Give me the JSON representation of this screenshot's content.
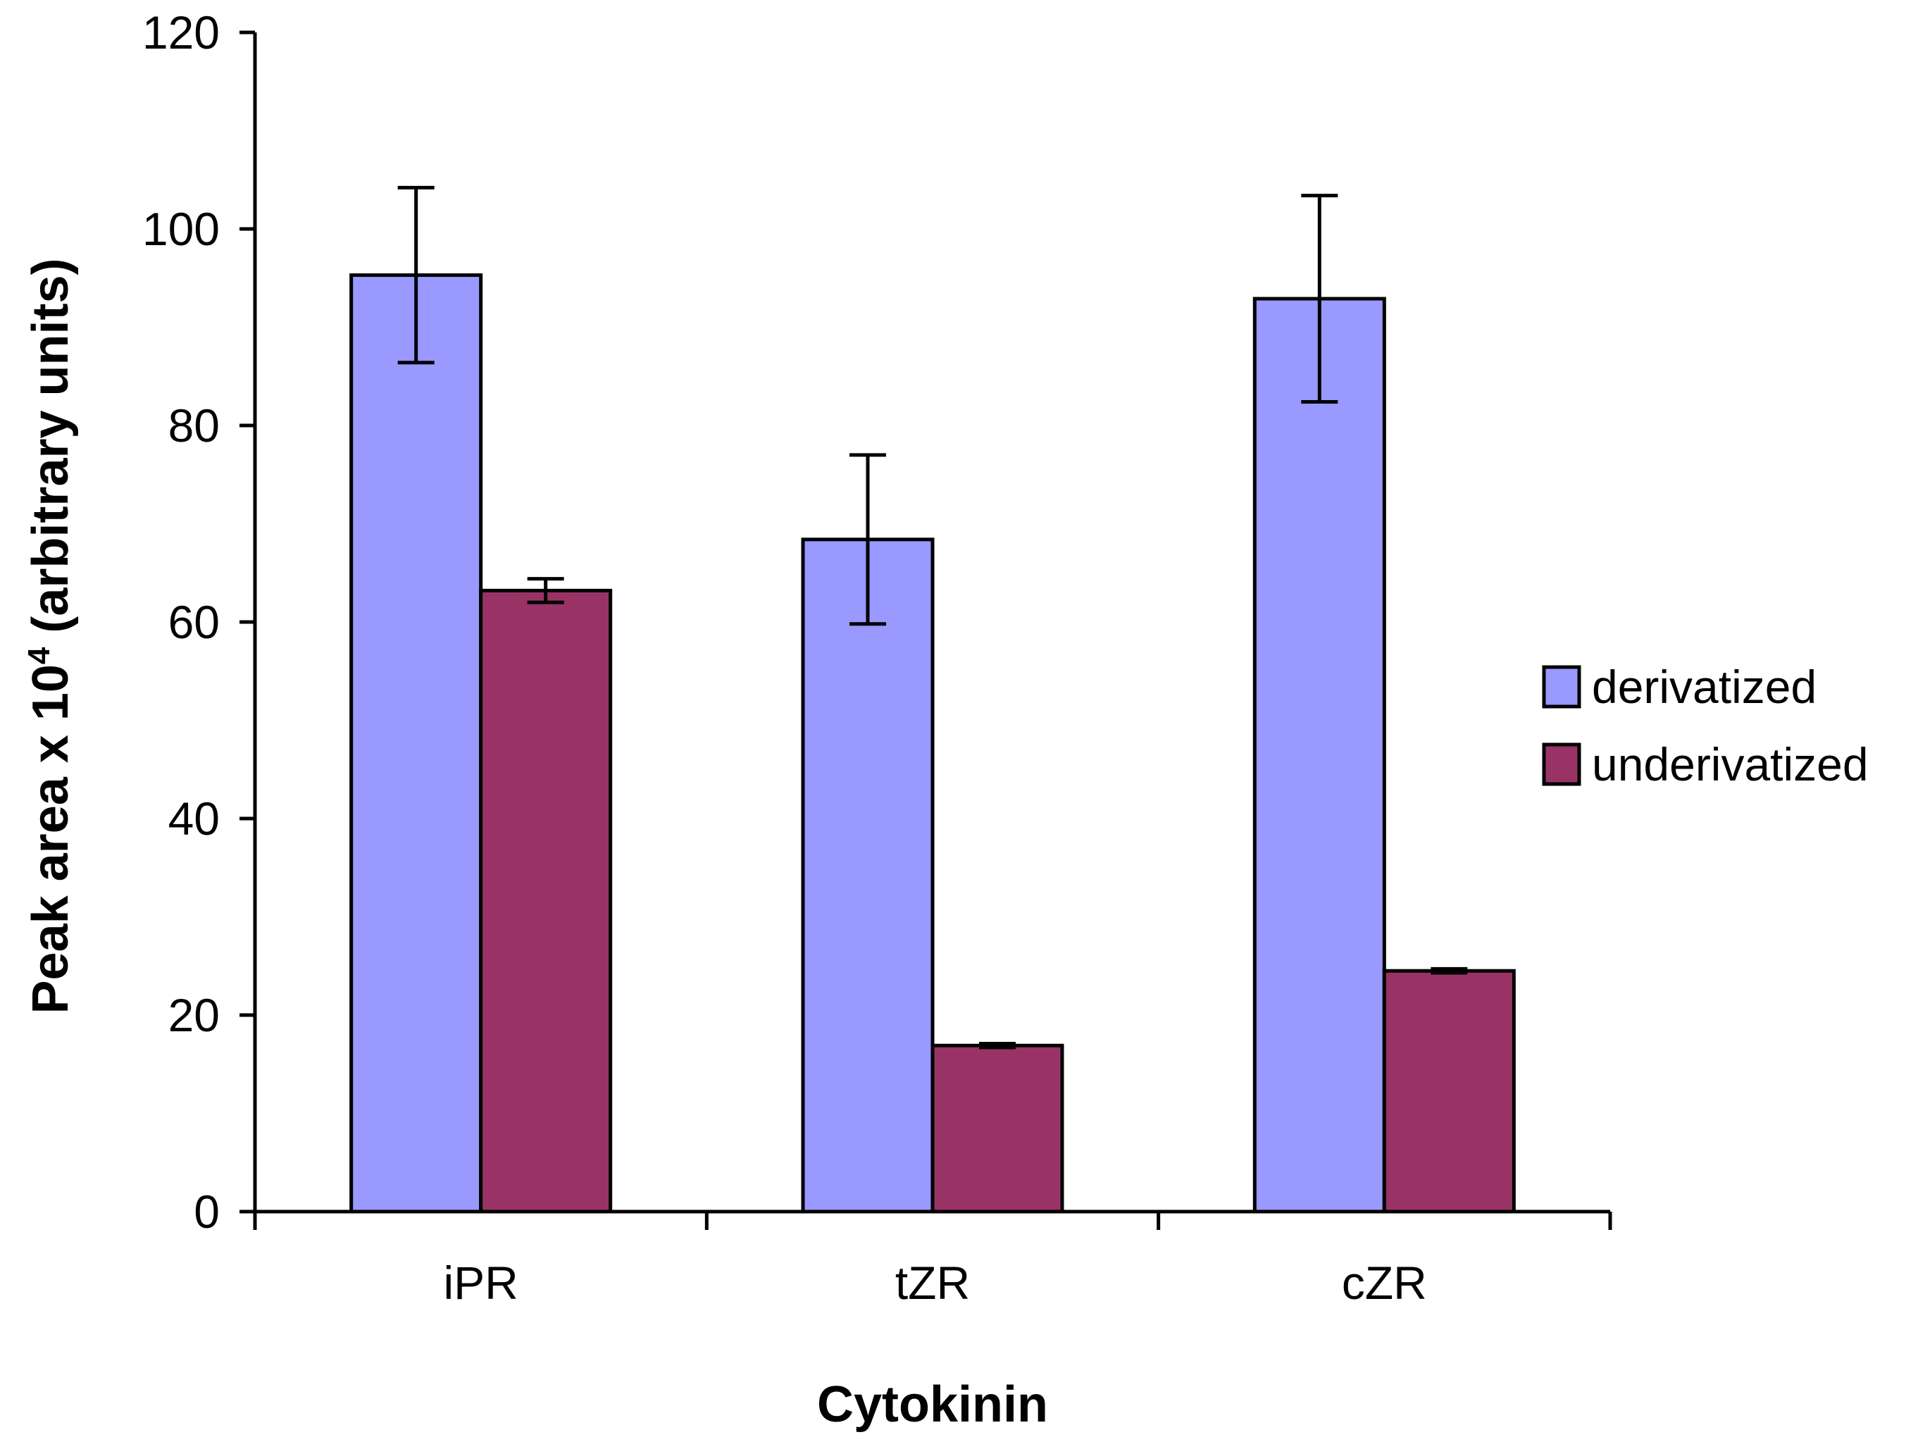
{
  "chart_data": {
    "type": "bar",
    "title": "",
    "xlabel": "Cytokinin",
    "ylabel_main": "Peak area x 10",
    "ylabel_sup": "4",
    "ylabel_tail": " (arbitrary units)",
    "ylim": [
      0,
      120
    ],
    "yticks": [
      0,
      20,
      40,
      60,
      80,
      100,
      120
    ],
    "ytick_labels": [
      "0",
      "20",
      "40",
      "60",
      "80",
      "100",
      "120"
    ],
    "categories": [
      "iPR",
      "tZR",
      "cZR"
    ],
    "grid": false,
    "legend_position": "right",
    "series": [
      {
        "name": "derivatized",
        "color": "#9999ff",
        "values": [
          95.3,
          68.4,
          92.9
        ],
        "err_low": [
          86.4,
          59.8,
          82.4
        ],
        "err_high": [
          104.2,
          77.0,
          103.4
        ]
      },
      {
        "name": "underivatized",
        "color": "#993366",
        "values": [
          63.2,
          16.9,
          24.5
        ],
        "err_low": [
          62.0,
          16.7,
          24.3
        ],
        "err_high": [
          64.4,
          17.1,
          24.7
        ]
      }
    ]
  }
}
